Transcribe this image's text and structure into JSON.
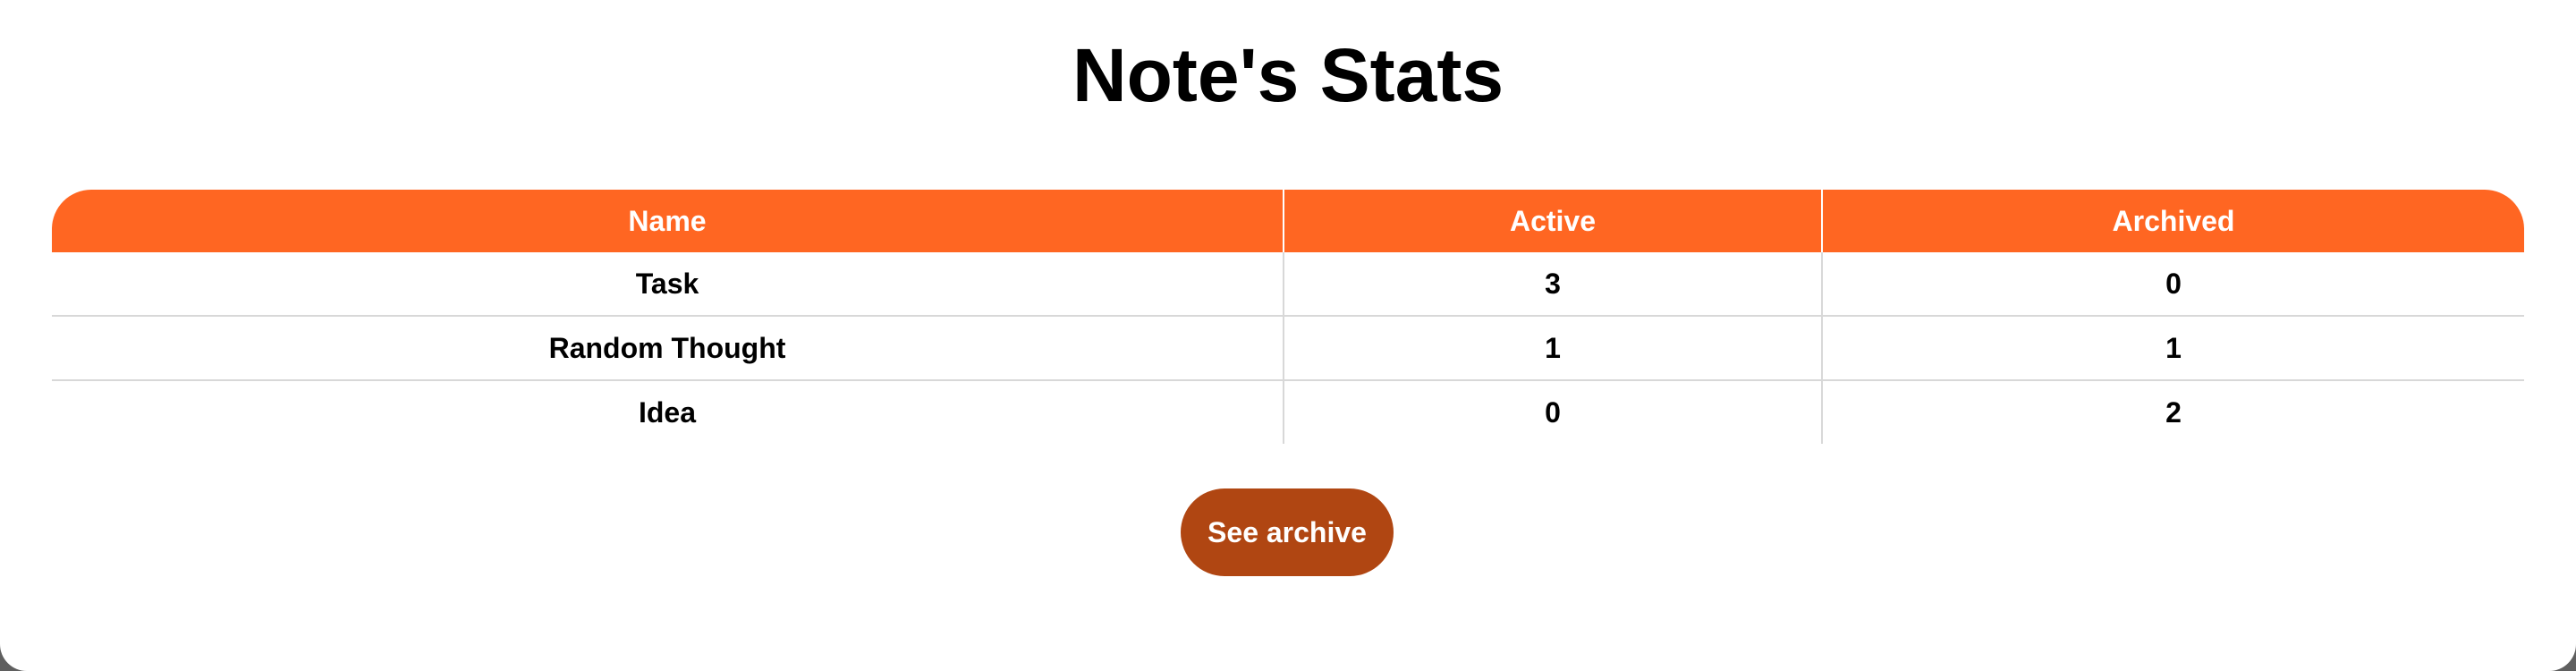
{
  "page": {
    "title": "Note's Stats"
  },
  "table": {
    "headers": [
      "Name",
      "Active",
      "Archived"
    ],
    "rows": [
      [
        "Task",
        "3",
        "0"
      ],
      [
        "Random Thought",
        "1",
        "1"
      ],
      [
        "Idea",
        "0",
        "2"
      ]
    ]
  },
  "actions": {
    "see_archive_label": "See archive"
  },
  "colors": {
    "header_bg": "#ff6622",
    "button_bg": "#b04612",
    "text": "#000000",
    "page_bg": "#ffffff"
  }
}
